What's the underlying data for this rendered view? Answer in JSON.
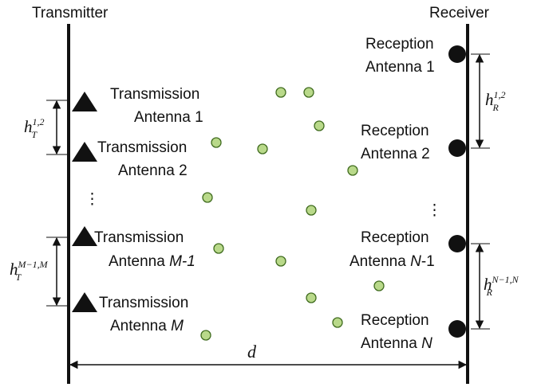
{
  "transmitter": {
    "title": "Transmitter",
    "antennas": [
      {
        "line1": "Transmission",
        "line2_prefix": "Antenna ",
        "line2_var": "",
        "line2_suffix": "1"
      },
      {
        "line1": "Transmission",
        "line2_prefix": "Antenna ",
        "line2_var": "",
        "line2_suffix": "2"
      },
      {
        "line1": "Transmission",
        "line2_prefix": "Antenna ",
        "line2_var": "M-1",
        "line2_suffix": ""
      },
      {
        "line1": "Transmission",
        "line2_prefix": "Antenna ",
        "line2_var": "M",
        "line2_suffix": ""
      }
    ],
    "ellipsis": "⋮",
    "spacing_top": {
      "base": "h",
      "sub": "T",
      "sup": "1,2"
    },
    "spacing_bottom": {
      "base": "h",
      "sub": "T",
      "sup": "M−1,M"
    }
  },
  "receiver": {
    "title": "Receiver",
    "antennas": [
      {
        "line1": "Reception",
        "line2_prefix": "Antenna ",
        "line2_var": "",
        "line2_suffix": "1"
      },
      {
        "line1": "Reception",
        "line2_prefix": "Antenna ",
        "line2_var": "",
        "line2_suffix": "2"
      },
      {
        "line1": "Reception",
        "line2_prefix": "Antenna ",
        "line2_var": "N",
        "line2_suffix": "-1"
      },
      {
        "line1": "Reception",
        "line2_prefix": "Antenna ",
        "line2_var": "N",
        "line2_suffix": ""
      }
    ],
    "ellipsis": "⋮",
    "spacing_top": {
      "base": "h",
      "sub": "R",
      "sup": "1,2"
    },
    "spacing_bottom": {
      "base": "h",
      "sub": "R",
      "sup": "N−1,N"
    }
  },
  "distance": {
    "label": "d"
  },
  "colors": {
    "line": "#111111",
    "scatterer_fill": "#b9d98a",
    "scatterer_stroke": "#3f6b1e"
  }
}
